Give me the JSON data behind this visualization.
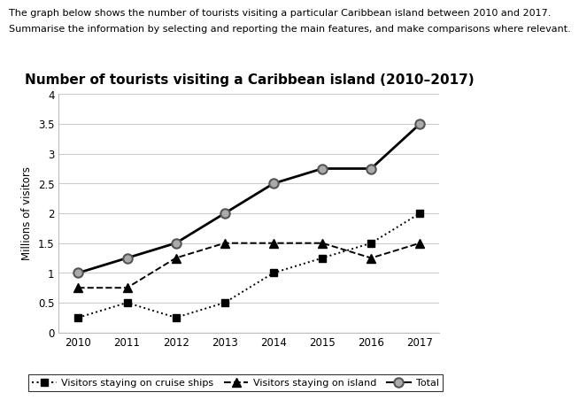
{
  "title": "Number of tourists visiting a Caribbean island (2010–2017)",
  "header_line1": "The graph below shows the number of tourists visiting a particular Caribbean island between 2010 and 2017.",
  "header_line2": "Summarise the information by selecting and reporting the main features, and make comparisons where relevant.",
  "ylabel": "Millions of visitors",
  "years": [
    2010,
    2011,
    2012,
    2013,
    2014,
    2015,
    2016,
    2017
  ],
  "cruise_ships": [
    0.25,
    0.5,
    0.25,
    0.5,
    1.0,
    1.25,
    1.5,
    2.0
  ],
  "on_island": [
    0.75,
    0.75,
    1.25,
    1.5,
    1.5,
    1.5,
    1.25,
    1.5
  ],
  "total": [
    1.0,
    1.25,
    1.5,
    2.0,
    2.5,
    2.75,
    2.75,
    3.5
  ],
  "ylim": [
    0,
    4
  ],
  "yticks": [
    0,
    0.5,
    1.0,
    1.5,
    2.0,
    2.5,
    3.0,
    3.5,
    4.0
  ],
  "legend_cruise": "Visitors staying on cruise ships",
  "legend_island": "Visitors staying on island",
  "legend_total": "Total",
  "grid_color": "#cccccc",
  "total_marker_face": "#aaaaaa",
  "total_marker_edge": "#555555",
  "title_fontsize": 11,
  "axis_fontsize": 8.5,
  "header_fontsize": 8.0,
  "legend_fontsize": 8.0
}
